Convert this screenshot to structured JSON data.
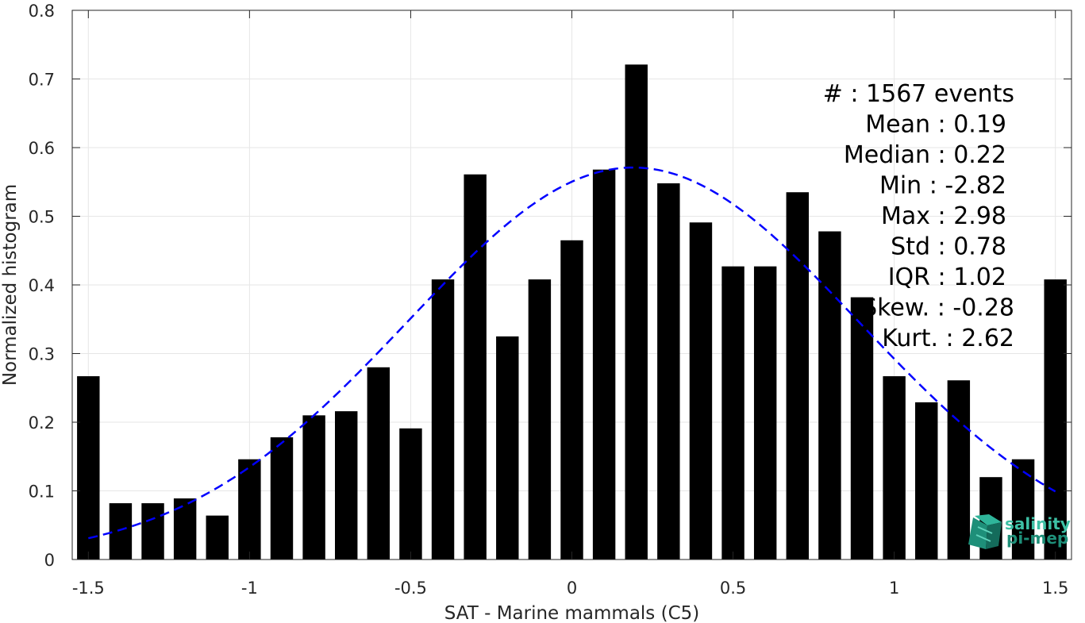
{
  "chart_data": {
    "type": "bar",
    "xlabel": "SAT - Marine mammals (C5)",
    "ylabel": "Normalized histogram",
    "xlim": [
      -1.55,
      1.55
    ],
    "ylim": [
      0,
      0.8
    ],
    "xticks": [
      -1.5,
      -1,
      -0.5,
      0,
      0.5,
      1,
      1.5
    ],
    "xtick_labels": [
      "-1.5",
      "-1",
      "-0.5",
      "0",
      "0.5",
      "1",
      "1.5"
    ],
    "yticks": [
      0,
      0.1,
      0.2,
      0.3,
      0.4,
      0.5,
      0.6,
      0.7,
      0.8
    ],
    "ytick_labels": [
      "0",
      "0.1",
      "0.2",
      "0.3",
      "0.4",
      "0.5",
      "0.6",
      "0.7",
      "0.8"
    ],
    "grid": true,
    "bar_color": "#000000",
    "bin_centers": [
      -1.5,
      -1.4,
      -1.3,
      -1.2,
      -1.1,
      -1.0,
      -0.9,
      -0.8,
      -0.7,
      -0.6,
      -0.5,
      -0.4,
      -0.3,
      -0.2,
      -0.1,
      0.0,
      0.1,
      0.2,
      0.3,
      0.4,
      0.5,
      0.6,
      0.7,
      0.8,
      0.9,
      1.0,
      1.1,
      1.2,
      1.3,
      1.4,
      1.5
    ],
    "values": [
      0.267,
      0.082,
      0.082,
      0.089,
      0.064,
      0.146,
      0.178,
      0.21,
      0.216,
      0.28,
      0.191,
      0.408,
      0.561,
      0.325,
      0.408,
      0.465,
      0.568,
      0.721,
      0.548,
      0.491,
      0.427,
      0.427,
      0.535,
      0.478,
      0.382,
      0.267,
      0.229,
      0.261,
      0.12,
      0.146,
      0.408
    ],
    "fit_curve": {
      "type": "gaussian",
      "mean": 0.19,
      "std": 0.7,
      "peak": 0.571,
      "x_range": [
        -1.5,
        1.5
      ],
      "color": "#0000ff",
      "style": "dashed"
    },
    "stats": [
      "#  : 1567 events",
      "Mean : 0.19",
      "Median : 0.22",
      "Min : -2.82",
      "Max : 2.98",
      "Std : 0.78",
      "IQR : 1.02",
      "Skew. : -0.28",
      "Kurt. : 2.62"
    ],
    "logo": {
      "line1": "salinity",
      "line2": "pi-mep"
    }
  }
}
